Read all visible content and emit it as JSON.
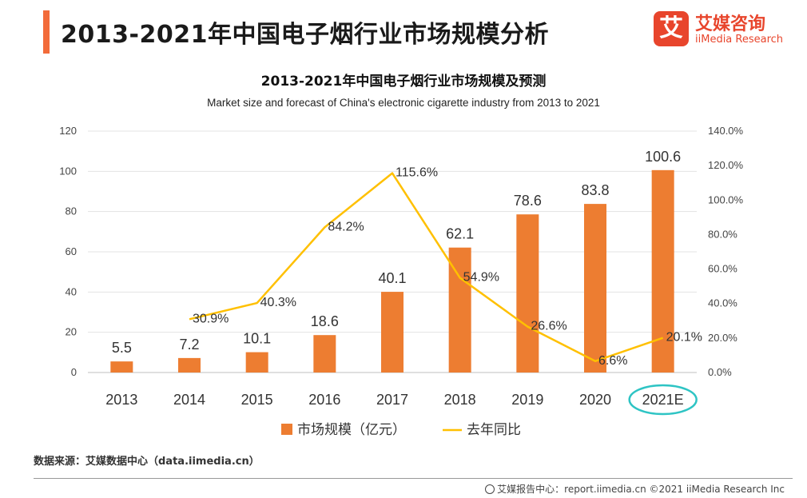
{
  "header": {
    "page_title": "2013-2021年中国电子烟行业市场规模分析",
    "logo_mark": "艾",
    "logo_cn": "艾媒咨询",
    "logo_en": "iiMedia Research"
  },
  "colors": {
    "accent": "#f26b3a",
    "bar": "#ed7d31",
    "line": "#ffc000",
    "highlight": "#2ec4c4"
  },
  "chart_data": {
    "type": "bar",
    "title": "2013-2021年中国电子烟行业市场规模及预测",
    "subtitle": "Market size and forecast of China's electronic cigarette industry from 2013 to 2021",
    "categories": [
      "2013",
      "2014",
      "2015",
      "2016",
      "2017",
      "2018",
      "2019",
      "2020",
      "2021E"
    ],
    "series": [
      {
        "name": "市场规模（亿元）",
        "type": "bar",
        "axis": "left",
        "values": [
          5.5,
          7.2,
          10.1,
          18.6,
          40.1,
          62.1,
          78.6,
          83.8,
          100.6
        ],
        "labels": [
          "5.5",
          "7.2",
          "10.1",
          "18.6",
          "40.1",
          "62.1",
          "78.6",
          "83.8",
          "100.6"
        ]
      },
      {
        "name": "去年同比",
        "type": "line",
        "axis": "right",
        "values": [
          null,
          30.9,
          40.3,
          84.2,
          115.6,
          54.9,
          26.6,
          6.6,
          20.1
        ],
        "labels": [
          "",
          "30.9%",
          "40.3%",
          "84.2%",
          "115.6%",
          "54.9%",
          "26.6%",
          "6.6%",
          "20.1%"
        ]
      }
    ],
    "ylim": [
      0,
      120
    ],
    "yticks": [
      "0",
      "20",
      "40",
      "60",
      "80",
      "100",
      "120"
    ],
    "y2lim": [
      0,
      140
    ],
    "y2ticks": [
      "0.0%",
      "20.0%",
      "40.0%",
      "60.0%",
      "80.0%",
      "100.0%",
      "120.0%",
      "140.0%"
    ],
    "grid": true,
    "legend_position": "bottom",
    "highlighted_category": "2021E"
  },
  "footer": {
    "source": "数据来源：艾媒数据中心（data.iimedia.cn）",
    "credit": "艾媒报告中心：report.iimedia.cn  ©2021  iiMedia Research  Inc"
  }
}
